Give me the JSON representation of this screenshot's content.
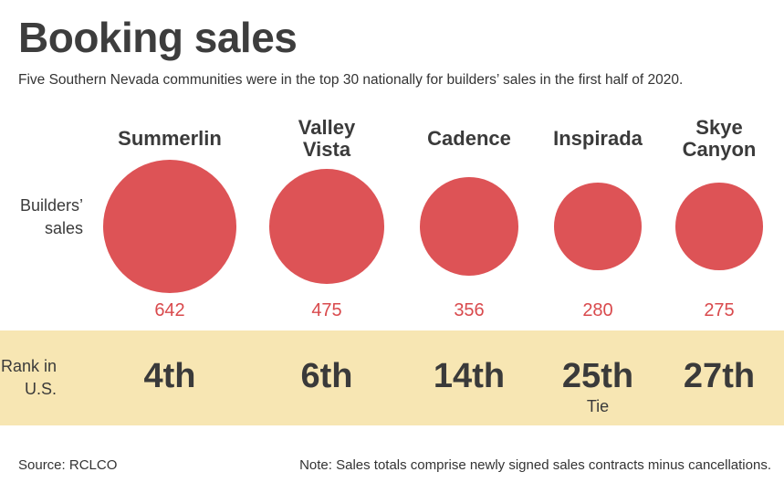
{
  "title": "Booking sales",
  "subtitle": "Five Southern Nevada communities were in the top 30 nationally for builders’ sales in the first half of 2020.",
  "row_labels": {
    "sales": "Builders’\nsales",
    "rank": "Rank in\nU.S."
  },
  "footer": {
    "source": "Source: RCLCO",
    "note": "Note: Sales totals comprise newly signed sales contracts minus cancellations."
  },
  "colors": {
    "circle": "#dd5356",
    "value_text": "#d94a4d",
    "rank_band": "#f7e6b3"
  },
  "chart_data": {
    "type": "bubble",
    "title": "Booking sales",
    "categories": [
      "Summerlin",
      "Valley\nVista",
      "Cadence",
      "Inspirada",
      "Skye\nCanyon"
    ],
    "values": [
      642,
      475,
      356,
      280,
      275
    ],
    "ranks": [
      "4th",
      "6th",
      "14th",
      "25th",
      "27th"
    ],
    "rank_notes": [
      "",
      "",
      "",
      "Tie",
      ""
    ]
  }
}
